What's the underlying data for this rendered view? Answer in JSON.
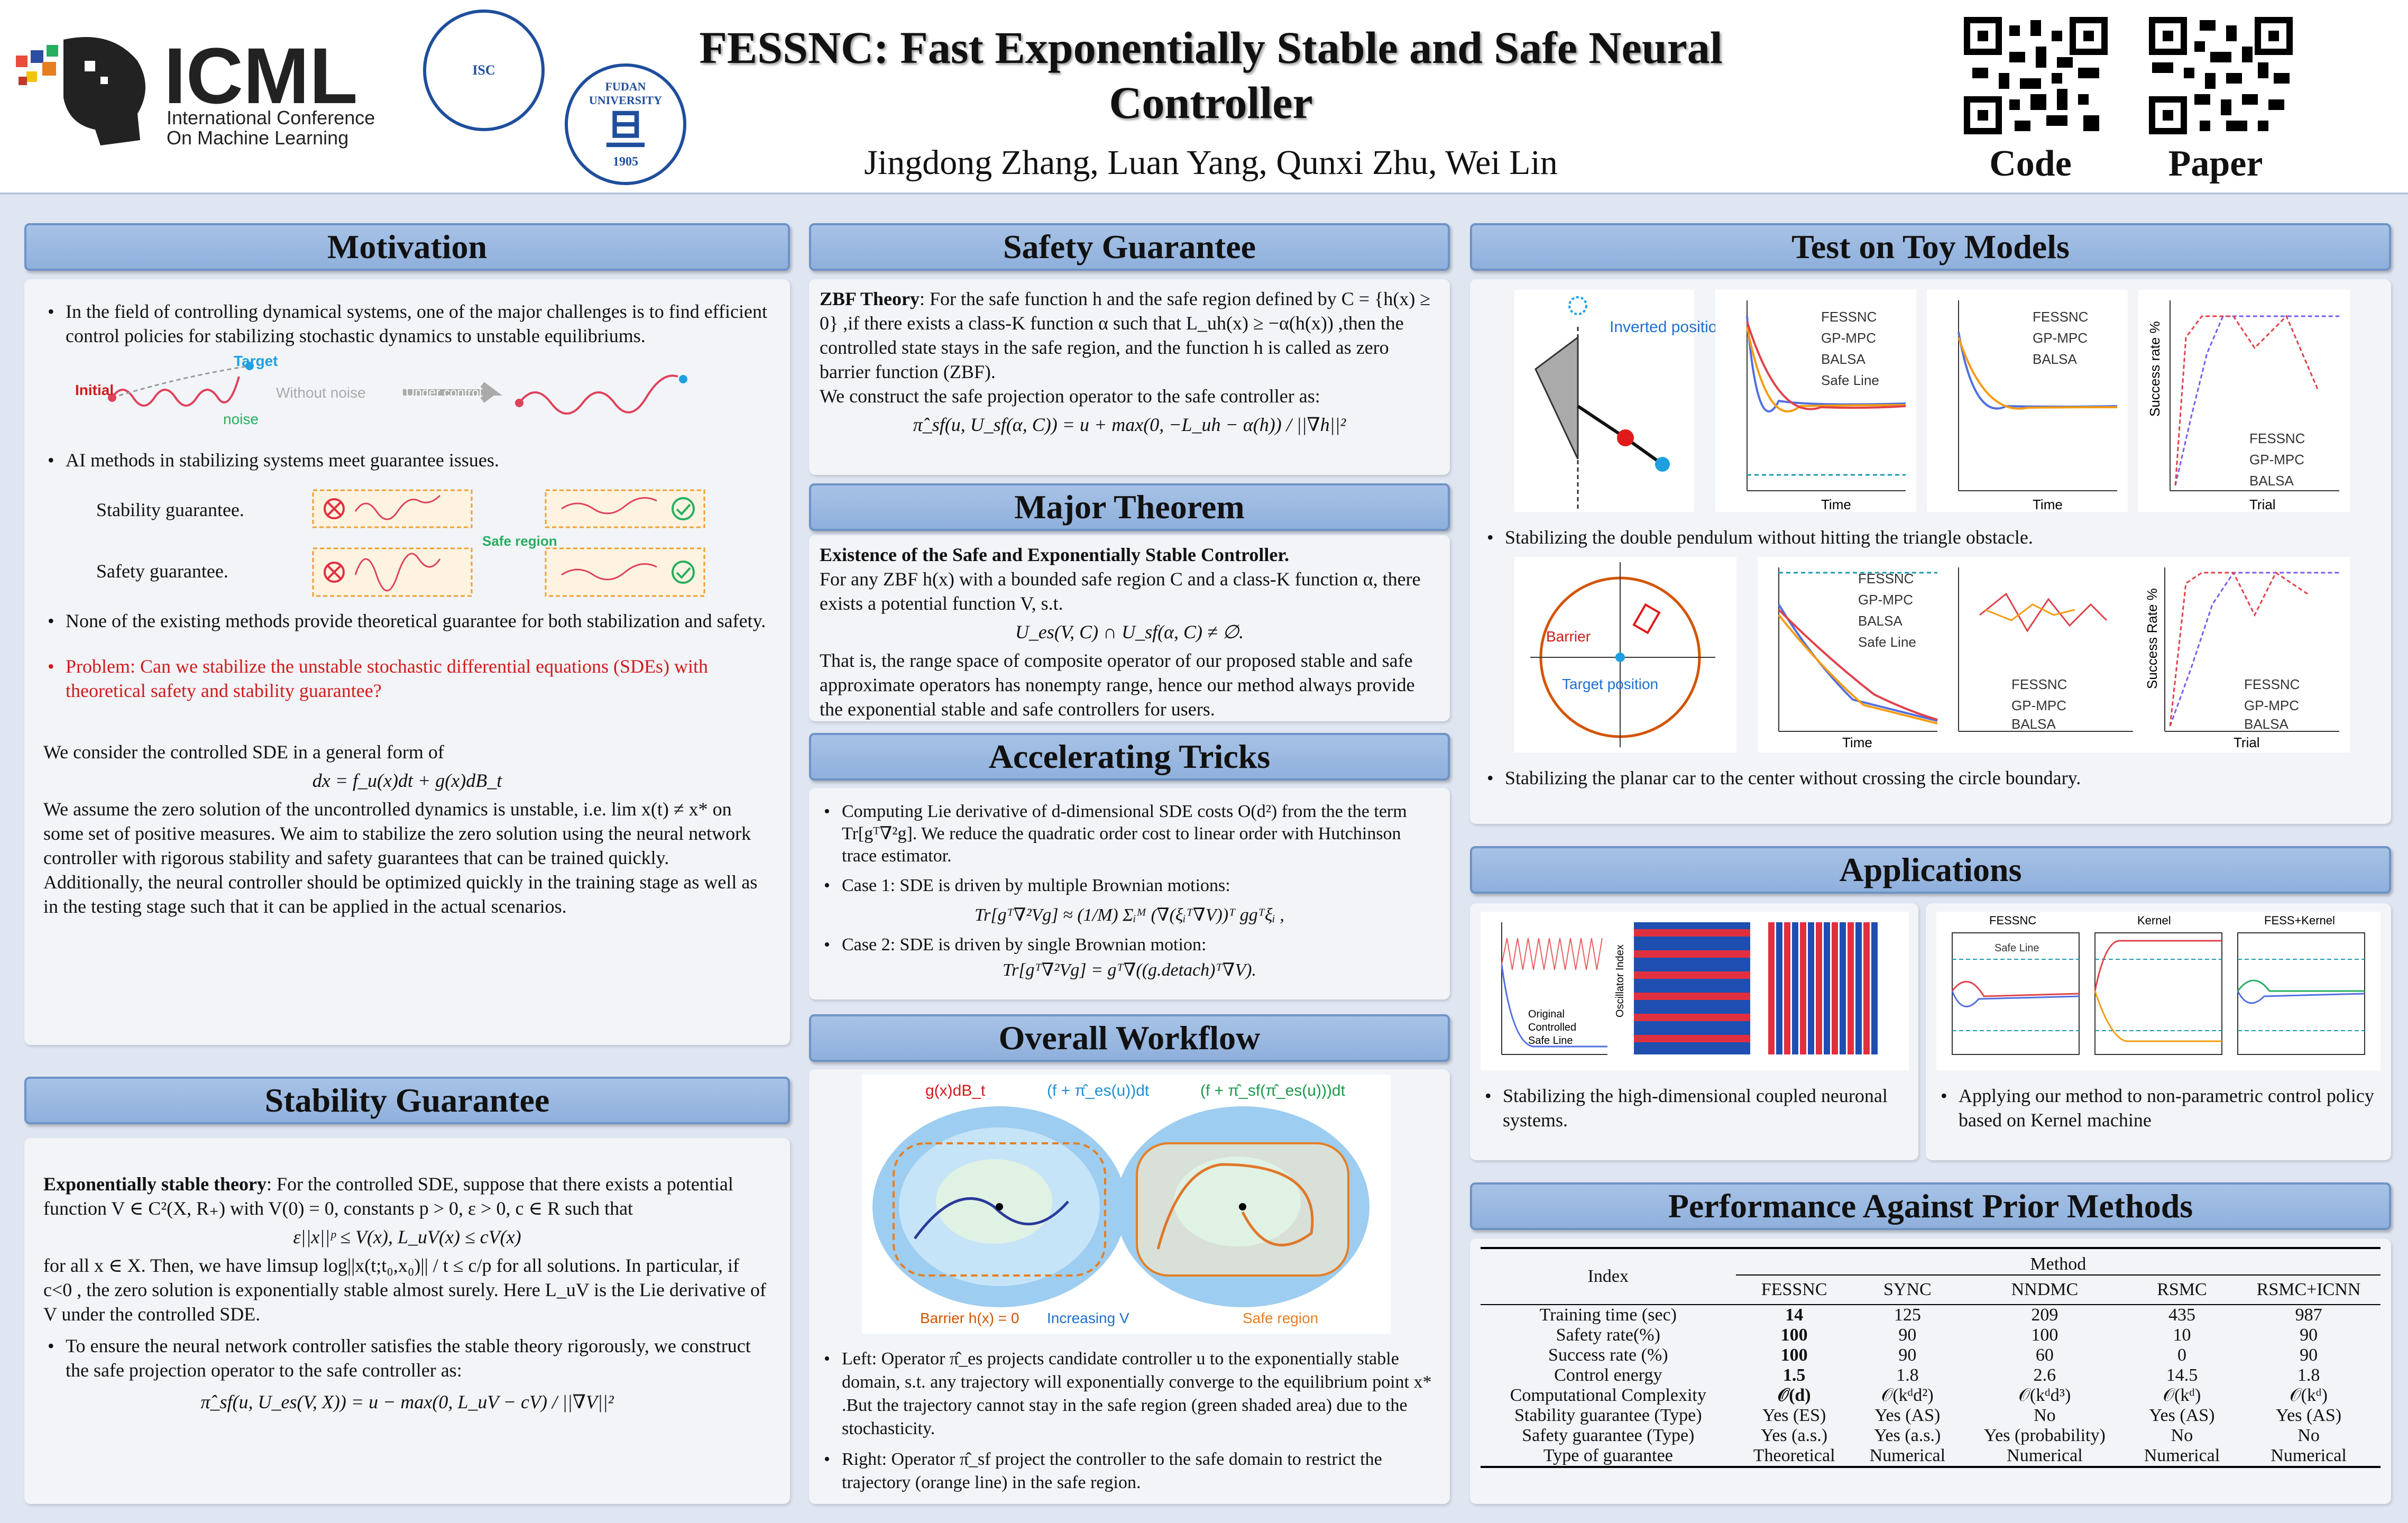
{
  "header": {
    "logo_text": "ICML",
    "logo_sub1": "International Conference",
    "logo_sub2": "On Machine Learning",
    "title_line1": "FESSNC: Fast Exponentially Stable and Safe Neural",
    "title_line2": "Controller",
    "authors": "Jingdong Zhang, Luan Yang, Qunxi Zhu, Wei Lin",
    "qr_code_label": "Code",
    "qr_paper_label": "Paper",
    "fudan_text": "FUDAN UNIVERSITY",
    "fudan_year": "1905"
  },
  "motivation": {
    "title": "Motivation",
    "b1": "In the field of controlling dynamical systems, one of the major challenges is to find efficient control policies for stabilizing stochastic dynamics to unstable equilibriums.",
    "fig_initial": "Initial",
    "fig_target": "Target",
    "fig_noise": "noise",
    "fig_without": "Without noise",
    "fig_under": "Under control",
    "b2": "AI methods in stabilizing systems meet guarantee issues.",
    "stab_label": "Stability guarantee.",
    "safe_label": "Safety guarantee.",
    "safe_region": "Safe region",
    "b3": "None of the existing methods provide theoretical guarantee for both stabilization and safety.",
    "b4": "Problem: Can we stabilize the unstable stochastic differential equations (SDEs) with theoretical safety and stability guarantee?",
    "p1": "We consider the controlled SDE in a general form of",
    "eq1": "dx = f_u(x)dt + g(x)dB_t",
    "p2": "We assume the zero solution of the uncontrolled dynamics is unstable, i.e. lim x(t) ≠ x* on some set of positive measures. We aim to stabilize the zero solution using the neural network controller with rigorous stability and safety guarantees that can be trained quickly. Additionally, the neural controller should be optimized quickly in the training stage as well as in the testing stage such that it can be applied in the actual scenarios."
  },
  "stability": {
    "title": "Stability Guarantee",
    "theory_head": "Exponentially stable theory",
    "p1": ": For the controlled SDE, suppose that there exists a potential function V ∈ C²(X, R₊) with V(0) = 0, constants p > 0, ε > 0, c ∈ R such that",
    "eq1": "ε||x||ᵖ ≤ V(x), L_uV(x) ≤ cV(x)",
    "p2": "for all x ∈ X. Then, we have limsup log||x(t;t₀,x₀)|| / t ≤ c/p for all solutions. In particular, if c<0 , the zero solution is exponentially stable almost surely. Here L_uV is the Lie derivative of V under the controlled SDE.",
    "b1": "To ensure the neural network controller satisfies the stable theory rigorously, we construct the safe projection operator to the safe controller as:",
    "eq2": "π̂_sf(u, U_es(V, X)) = u − max(0, L_uV − cV) / ||∇V||²"
  },
  "safety": {
    "title": "Safety Guarantee",
    "zbf_head": "ZBF Theory",
    "p1": ": For the safe function h and the safe region defined by C = {h(x) ≥ 0} ,if there exists a class-K function α such that L_uh(x) ≥ −α(h(x)) ,then the controlled state stays in the safe region, and the function h is called as zero barrier function (ZBF).",
    "p2": "We construct the safe projection operator to the safe controller as:",
    "eq1": "π̂_sf(u, U_sf(α, C)) = u + max(0, −L_uh − α(h)) / ||∇h||²"
  },
  "theorem": {
    "title": "Major Theorem",
    "head": "Existence of the Safe and Exponentially Stable Controller.",
    "p1": "For any ZBF h(x) with a bounded safe region C and a class-K function α, there exists a potential function V, s.t.",
    "eq1": "U_es(V, C) ∩ U_sf(α, C) ≠ ∅.",
    "p2": "That is, the range space of composite operator of our proposed stable and safe approximate operators has nonempty range, hence our method always provide the exponential stable and safe controllers for users."
  },
  "tricks": {
    "title": "Accelerating Tricks",
    "b1": "Computing Lie derivative of d-dimensional SDE costs O(d²) from the the term Tr[gᵀ∇²g]. We reduce the quadratic order cost to linear order with Hutchinson trace estimator.",
    "b2": "Case 1: SDE is driven by multiple Brownian motions:",
    "eq1": "Tr[gᵀ∇²Vg] ≈ (1/M) Σᵢᴹ (∇(ξᵢᵀ∇V))ᵀ ggᵀξᵢ ,",
    "b3": "Case 2: SDE is driven by single Brownian motion:",
    "eq2": "Tr[gᵀ∇²Vg] = gᵀ∇((g.detach)ᵀ∇V)."
  },
  "workflow": {
    "title": "Overall Workflow",
    "leg1": "g(x)dB_t",
    "leg2": "(f + π̂_es(u))dt",
    "leg3": "(f + π̂_sf(π̂_es(u)))dt",
    "lab_barrier": "Barrier h(x) = 0",
    "lab_increasing": "Increasing V",
    "lab_safe": "Safe region",
    "b1": "Left: Operator π̂_es projects candidate controller u to the exponentially stable domain, s.t. any trajectory will exponentially converge to the equilibrium point x* .But the trajectory cannot stay in the safe region (green shaded area) due to the stochasticity.",
    "b2": "Right: Operator π̂_sf project the controller to the safe domain to restrict the trajectory (orange line) in the safe region."
  },
  "toy": {
    "title": "Test on Toy Models",
    "inverted": "Inverted position",
    "cap1": "Stabilizing the double pendulum without hitting the triangle obstacle.",
    "cap2": "Stabilizing the planar car to the center without crossing the circle boundary.",
    "barrier": "Barrier",
    "target_pos": "Target position",
    "time": "Time",
    "trial": "Trial",
    "success": "Success rate %",
    "success2": "Success Rate %",
    "legend_a": [
      "FESSNC",
      "GP-MPC",
      "BALSA",
      "Safe Line"
    ],
    "legend_b": [
      "FESSNC",
      "GP-MPC",
      "BALSA"
    ]
  },
  "applications": {
    "title": "Applications",
    "cap1": "Stabilizing the high-dimensional coupled neuronal systems.",
    "cap2": "Applying our method to non-parametric control policy based on Kernel machine",
    "leg_orig": "Original",
    "leg_ctrl": "Controlled",
    "leg_safe": "Safe Line",
    "osc": "Oscillator Index",
    "p1": "FESSNC",
    "p2": "Kernel",
    "p3": "FESS+Kernel"
  },
  "performance": {
    "title": "Performance Against Prior Methods",
    "index": "Index",
    "method": "Method",
    "cols": [
      "FESSNC",
      "SYNC",
      "NNDMC",
      "RSMC",
      "RSMC+ICNN"
    ],
    "rows": [
      [
        "Training time (sec)",
        "14",
        "125",
        "209",
        "435",
        "987"
      ],
      [
        "Safety rate(%)",
        "100",
        "90",
        "100",
        "10",
        "90"
      ],
      [
        "Success rate (%)",
        "100",
        "90",
        "60",
        "0",
        "90"
      ],
      [
        "Control energy",
        "1.5",
        "1.8",
        "2.6",
        "14.5",
        "1.8"
      ],
      [
        "Computational Complexity",
        "𝒪(d)",
        "𝒪(kᵈd²)",
        "𝒪(kᵈd³)",
        "𝒪(kᵈ)",
        "𝒪(kᵈ)"
      ],
      [
        "Stability guarantee (Type)",
        "Yes (ES)",
        "Yes (AS)",
        "No",
        "Yes (AS)",
        "Yes (AS)"
      ],
      [
        "Safety guarantee (Type)",
        "Yes (a.s.)",
        "Yes (a.s.)",
        "Yes (probability)",
        "No",
        "No"
      ],
      [
        "Type of guarantee",
        "Theoretical",
        "Numerical",
        "Numerical",
        "Numerical",
        "Numerical"
      ]
    ]
  },
  "colors": {
    "accent": "#8fb0dc",
    "red": "#d21a1a",
    "fessnc": "#4f6fe0",
    "gpmpc": "#f39c12",
    "balsa": "#e0414a"
  }
}
